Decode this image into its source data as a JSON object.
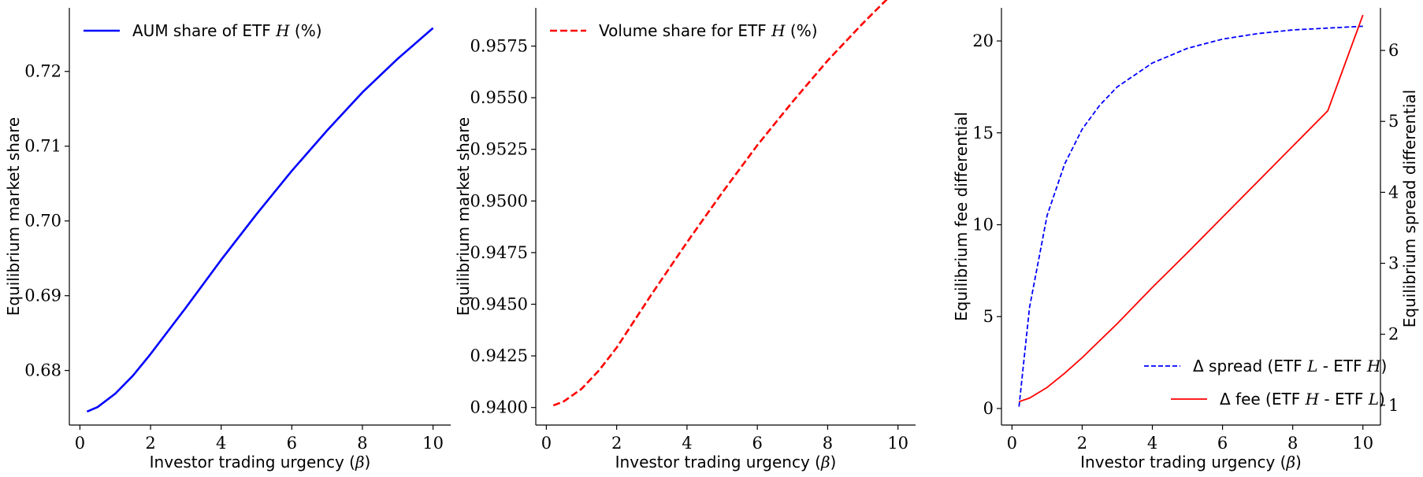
{
  "chart_data": [
    {
      "type": "line",
      "xlabel": "Investor trading urgency (β)",
      "ylabel": "Equilibrium market share",
      "xlim": [
        -0.3,
        10.5
      ],
      "ylim": [
        0.6727,
        0.7285
      ],
      "xticks": [
        0,
        2,
        4,
        6,
        8,
        10
      ],
      "yticks": [
        0.68,
        0.69,
        0.7,
        0.71,
        0.72
      ],
      "ytick_labels": [
        "0.68",
        "0.69",
        "0.70",
        "0.71",
        "0.72"
      ],
      "legend_position": "top-left",
      "series": [
        {
          "name": "AUM share of ETF H (%)",
          "legend_prefix": "AUM share of ETF ",
          "legend_math": "H",
          "legend_suffix": " (%)",
          "color": "#0000ff",
          "dash": "solid",
          "x": [
            0.2,
            0.5,
            1,
            1.5,
            2,
            3,
            4,
            5,
            6,
            7,
            8,
            9,
            10
          ],
          "y": [
            0.6745,
            0.6751,
            0.6769,
            0.6793,
            0.6822,
            0.6884,
            0.6948,
            0.7009,
            0.7067,
            0.7121,
            0.7172,
            0.7217,
            0.7258
          ]
        }
      ]
    },
    {
      "type": "line",
      "xlabel": "Investor trading urgency (β)",
      "ylabel": "Equilibrium market share",
      "xlim": [
        -0.3,
        10.5
      ],
      "ylim": [
        0.93915,
        0.95935
      ],
      "xticks": [
        0,
        2,
        4,
        6,
        8,
        10
      ],
      "yticks": [
        0.94,
        0.9425,
        0.945,
        0.9475,
        0.95,
        0.9525,
        0.955,
        0.9575
      ],
      "ytick_labels": [
        "0.9400",
        "0.9425",
        "0.9450",
        "0.9475",
        "0.9500",
        "0.9525",
        "0.9550",
        "0.9575"
      ],
      "legend_position": "top-left",
      "series": [
        {
          "name": "Volume share for ETF H (%)",
          "legend_prefix": "Volume share for ETF ",
          "legend_math": "H",
          "legend_suffix": " (%)",
          "color": "#ff0000",
          "dash": "dashed",
          "x": [
            0.2,
            0.5,
            1,
            1.5,
            2,
            3,
            4,
            5,
            6,
            7,
            8,
            9,
            10
          ],
          "y": [
            0.9401,
            0.9403,
            0.9409,
            0.9418,
            0.9429,
            0.9455,
            0.948,
            0.9504,
            0.9527,
            0.9548,
            0.9568,
            0.9586,
            0.9603
          ]
        }
      ]
    },
    {
      "type": "line",
      "xlabel": "Investor trading urgency (β)",
      "ylabel": "Equilibrium fee differential",
      "ylabel_right": "Equilibrium spread differential",
      "xlim": [
        -0.3,
        10.5
      ],
      "ylim": [
        -0.9,
        21.8
      ],
      "ylim_right": [
        0.72,
        6.6
      ],
      "xticks": [
        0,
        2,
        4,
        6,
        8,
        10
      ],
      "yticks": [
        0,
        5,
        10,
        15,
        20
      ],
      "ytick_labels": [
        "0",
        "5",
        "10",
        "15",
        "20"
      ],
      "yticks_right": [
        1,
        2,
        3,
        4,
        5,
        6
      ],
      "ytick_labels_right": [
        "1",
        "2",
        "3",
        "4",
        "5",
        "6"
      ],
      "legend_position": "bottom-right",
      "series": [
        {
          "name": "Δ spread (ETF L - ETF H)",
          "legend_prefix": "Δ spread (ETF ",
          "legend_math": "L",
          "legend_mid": " - ETF ",
          "legend_math2": "H",
          "legend_suffix": ")",
          "color": "#0000ff",
          "dash": "dashed",
          "axis": "left",
          "x": [
            0.2,
            0.5,
            1,
            1.5,
            2,
            2.5,
            3,
            4,
            5,
            6,
            7,
            8,
            9,
            10
          ],
          "y": [
            0.1,
            5.5,
            10.5,
            13.3,
            15.2,
            16.5,
            17.5,
            18.8,
            19.6,
            20.1,
            20.4,
            20.6,
            20.7,
            20.8
          ]
        },
        {
          "name": "Δ fee (ETF H - ETF L)",
          "legend_prefix": "Δ fee (ETF ",
          "legend_math": "H",
          "legend_mid": " - ETF ",
          "legend_math2": "L",
          "legend_suffix": ")",
          "color": "#ff0000",
          "dash": "solid",
          "axis": "right",
          "x": [
            0.2,
            0.5,
            1,
            1.5,
            2,
            3,
            4,
            5,
            6,
            7,
            8,
            9,
            10
          ],
          "y": [
            1.05,
            1.1,
            1.25,
            1.45,
            1.67,
            2.15,
            2.66,
            3.15,
            3.65,
            4.15,
            4.65,
            5.15,
            6.5
          ]
        }
      ]
    }
  ]
}
